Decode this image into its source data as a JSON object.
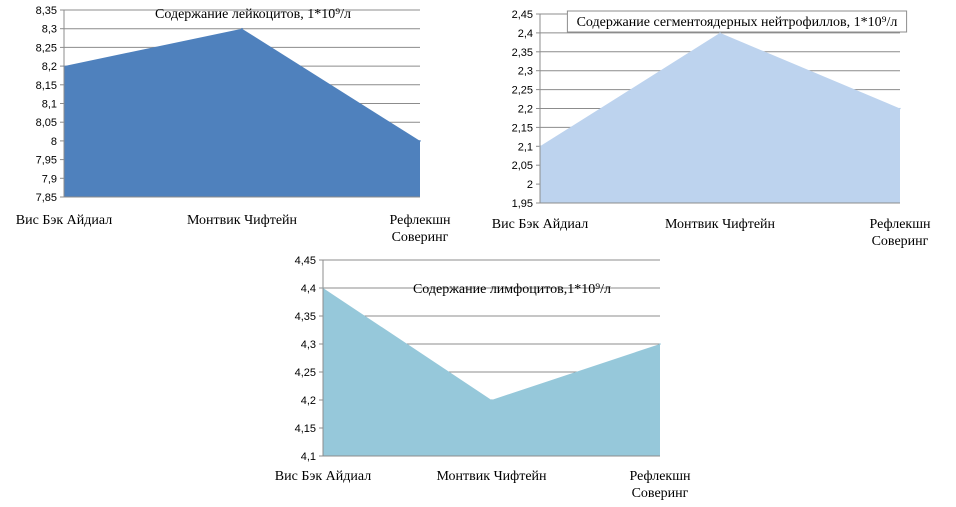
{
  "chart_data": [
    {
      "type": "area",
      "title": "Содержание лейкоцитов, 1*10⁹/л",
      "categories": [
        "Вис Бэк Айдиал",
        "Монтвик Чифтейн",
        "Рефлекшн Соверинг"
      ],
      "values": [
        8.2,
        8.3,
        8.0
      ],
      "ylim": [
        7.85,
        8.35
      ],
      "yticks": [
        "8,35",
        "8,3",
        "8,25",
        "8,2",
        "8,15",
        "8,1",
        "8,05",
        "8",
        "7,95",
        "7,9",
        "7,85"
      ],
      "grid": true,
      "color": "#4f81bd"
    },
    {
      "type": "area",
      "title": "Содержание сегментоядерных нейтрофиллов, 1*10⁹/л",
      "categories": [
        "Вис Бэк Айдиал",
        "Монтвик Чифтейн",
        "Рефлекшн Соверинг"
      ],
      "values": [
        2.1,
        2.4,
        2.2
      ],
      "ylim": [
        1.95,
        2.45
      ],
      "yticks": [
        "2,45",
        "2,4",
        "2,35",
        "2,3",
        "2,25",
        "2,2",
        "2,15",
        "2,1",
        "2,05",
        "2",
        "1,95"
      ],
      "grid": true,
      "color": "#bdd3ee"
    },
    {
      "type": "area",
      "title": "Содержание лимфоцитов,1*10⁹/л",
      "categories": [
        "Вис Бэк Айдиал",
        "Монтвик Чифтейн",
        "Рефлекшн Соверинг"
      ],
      "values": [
        4.4,
        4.2,
        4.3
      ],
      "ylim": [
        4.1,
        4.45
      ],
      "yticks": [
        "4,45",
        "4,4",
        "4,35",
        "4,3",
        "4,25",
        "4,2",
        "4,15",
        "4,1"
      ],
      "grid": true,
      "color": "#96c8da"
    }
  ]
}
